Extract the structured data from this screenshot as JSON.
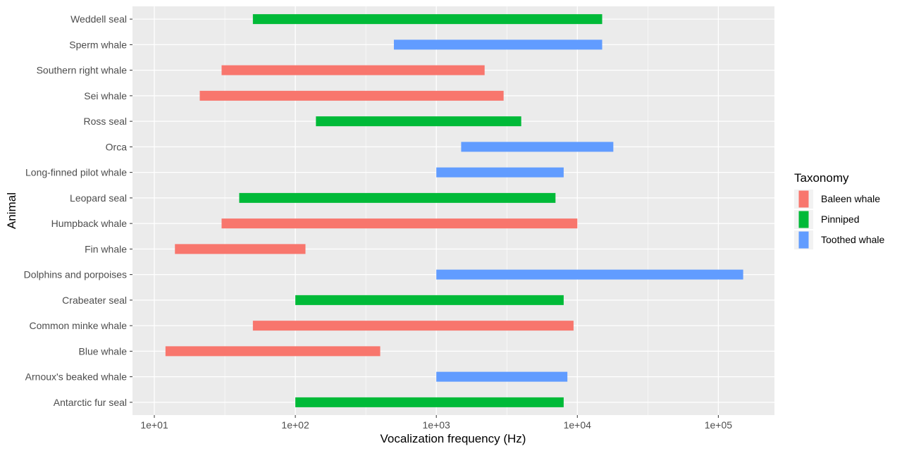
{
  "chart_data": {
    "type": "bar",
    "orientation": "horizontal-range",
    "xlabel": "Vocalization frequency (Hz)",
    "ylabel": "Animal",
    "x_scale": "log10",
    "xlim": [
      7,
      250000
    ],
    "x_ticks": [
      {
        "value": 10,
        "label": "1e+01"
      },
      {
        "value": 100,
        "label": "1e+02"
      },
      {
        "value": 1000,
        "label": "1e+03"
      },
      {
        "value": 10000,
        "label": "1e+04"
      },
      {
        "value": 100000,
        "label": "1e+05"
      }
    ],
    "grid": true,
    "legend": {
      "title": "Taxonomy",
      "position": "right",
      "entries": [
        {
          "name": "Baleen whale",
          "color": "#F8766D"
        },
        {
          "name": "Pinniped",
          "color": "#00BA38"
        },
        {
          "name": "Toothed whale",
          "color": "#619CFF"
        }
      ]
    },
    "categories": [
      "Antarctic fur seal",
      "Arnoux's beaked whale",
      "Blue whale",
      "Common minke whale",
      "Crabeater seal",
      "Dolphins and porpoises",
      "Fin whale",
      "Humpback whale",
      "Leopard seal",
      "Long-finned pilot whale",
      "Orca",
      "Ross seal",
      "Sei whale",
      "Southern right whale",
      "Sperm whale",
      "Weddell seal"
    ],
    "ranges": [
      {
        "animal": "Antarctic fur seal",
        "taxonomy": "Pinniped",
        "low": 100,
        "high": 8000
      },
      {
        "animal": "Arnoux's beaked whale",
        "taxonomy": "Toothed whale",
        "low": 1000,
        "high": 8500
      },
      {
        "animal": "Blue whale",
        "taxonomy": "Baleen whale",
        "low": 12,
        "high": 400
      },
      {
        "animal": "Common minke whale",
        "taxonomy": "Baleen whale",
        "low": 50,
        "high": 9400
      },
      {
        "animal": "Crabeater seal",
        "taxonomy": "Pinniped",
        "low": 100,
        "high": 8000
      },
      {
        "animal": "Dolphins and porpoises",
        "taxonomy": "Toothed whale",
        "low": 1000,
        "high": 150000
      },
      {
        "animal": "Fin whale",
        "taxonomy": "Baleen whale",
        "low": 14,
        "high": 118
      },
      {
        "animal": "Humpback whale",
        "taxonomy": "Baleen whale",
        "low": 30,
        "high": 10000
      },
      {
        "animal": "Leopard seal",
        "taxonomy": "Pinniped",
        "low": 40,
        "high": 7000
      },
      {
        "animal": "Long-finned pilot whale",
        "taxonomy": "Toothed whale",
        "low": 1000,
        "high": 8000
      },
      {
        "animal": "Orca",
        "taxonomy": "Toothed whale",
        "low": 1500,
        "high": 18000
      },
      {
        "animal": "Ross seal",
        "taxonomy": "Pinniped",
        "low": 140,
        "high": 4000
      },
      {
        "animal": "Sei whale",
        "taxonomy": "Baleen whale",
        "low": 21,
        "high": 3000
      },
      {
        "animal": "Southern right whale",
        "taxonomy": "Baleen whale",
        "low": 30,
        "high": 2200
      },
      {
        "animal": "Sperm whale",
        "taxonomy": "Toothed whale",
        "low": 500,
        "high": 15000
      },
      {
        "animal": "Weddell seal",
        "taxonomy": "Pinniped",
        "low": 50,
        "high": 15000
      }
    ]
  }
}
